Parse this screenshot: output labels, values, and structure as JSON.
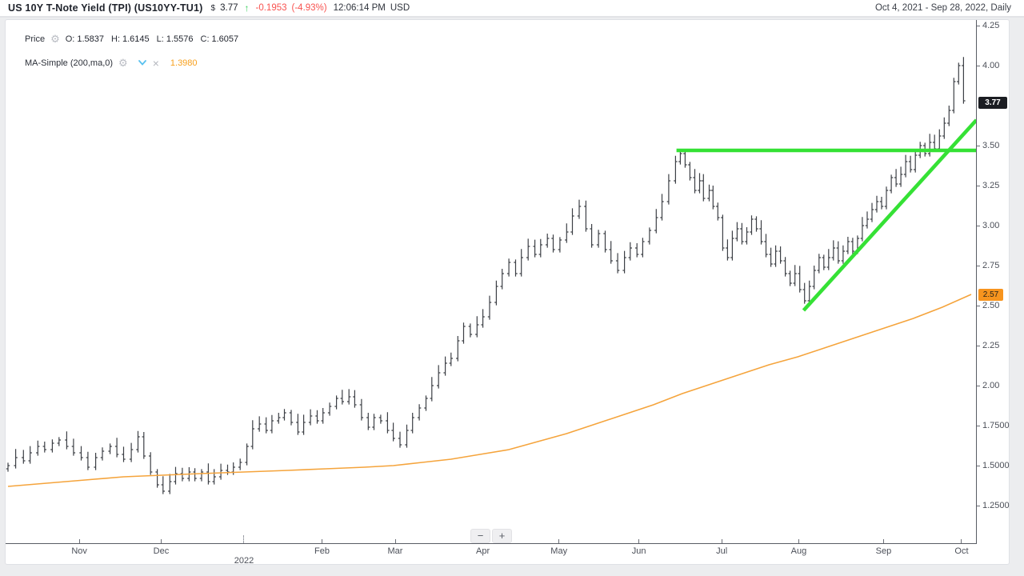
{
  "header": {
    "title": "US 10Y T-Note Yield (TPI) (US10YY-TU1)",
    "currency_symbol": "$",
    "price": "3.77",
    "change": "-0.1953",
    "change_pct": "(-4.93%)",
    "time": "12:06:14 PM",
    "currency": "USD",
    "date_range": "Oct 4, 2021 - Sep 28, 2022",
    "interval": ", Daily"
  },
  "icons": {
    "arrow_up": "↑",
    "gear": "⚙",
    "close": "×"
  },
  "legend": {
    "price_row": {
      "label": "Price",
      "o_label": "O:",
      "o": "1.5837",
      "h_label": "H:",
      "h": "1.6145",
      "l_label": "L:",
      "l": "1.5576",
      "c_label": "C:",
      "c": "1.6057"
    },
    "ma_row": {
      "label": "MA-Simple (200,ma,0)",
      "value": "1.3980"
    }
  },
  "toolbar": {
    "zoom_out": "−",
    "zoom_in": "+"
  },
  "axis_badges": {
    "last_price": "3.77",
    "ma_value": "2.57"
  },
  "colors": {
    "trend_green": "#35e135",
    "ma_orange": "#f5a43c",
    "ma_badge_bg": "#f7941e",
    "price_badge_bg": "#1b1d22",
    "bars": "#3d4046",
    "up_green": "#3bcf5f",
    "down_red": "#f8524f",
    "axis_line": "#595c64"
  },
  "chart_data": {
    "type": "ohlc",
    "title": "US 10Y T-Note Yield (TPI) (US10YY-TU1)",
    "x_range_labels": [
      "Oct 4, 2021",
      "Sep 28, 2022"
    ],
    "interval": "Daily",
    "last_price": 3.77,
    "grid": false,
    "legend_position": "top-left",
    "y_axis_range": [
      1.015,
      4.285
    ],
    "y_ticks": [
      {
        "label": "4.25",
        "value": 4.25
      },
      {
        "label": "4.00",
        "value": 4.0
      },
      {
        "label": "3.50",
        "value": 3.5
      },
      {
        "label": "3.25",
        "value": 3.25
      },
      {
        "label": "3.00",
        "value": 3.0
      },
      {
        "label": "2.75",
        "value": 2.75
      },
      {
        "label": "2.50",
        "value": 2.5
      },
      {
        "label": "2.25",
        "value": 2.25
      },
      {
        "label": "2.00",
        "value": 2.0
      },
      {
        "label": "1.7500",
        "value": 1.75
      },
      {
        "label": "1.5000",
        "value": 1.5
      },
      {
        "label": "1.2500",
        "value": 1.25
      }
    ],
    "x_ticks": [
      {
        "label": "Nov",
        "t": 0.074
      },
      {
        "label": "Dec",
        "t": 0.159
      },
      {
        "label": "2022",
        "t": 0.245,
        "year": true
      },
      {
        "label": "Feb",
        "t": 0.326
      },
      {
        "label": "Mar",
        "t": 0.402
      },
      {
        "label": "Apr",
        "t": 0.493
      },
      {
        "label": "May",
        "t": 0.572
      },
      {
        "label": "Jun",
        "t": 0.655
      },
      {
        "label": "Jul",
        "t": 0.741
      },
      {
        "label": "Aug",
        "t": 0.821
      },
      {
        "label": "Sep",
        "t": 0.909
      },
      {
        "label": "Oct",
        "t": 0.99
      }
    ],
    "close_anchors": [
      [
        0.0,
        1.5
      ],
      [
        0.008,
        1.55
      ],
      [
        0.016,
        1.53
      ],
      [
        0.023,
        1.58
      ],
      [
        0.031,
        1.62
      ],
      [
        0.038,
        1.6
      ],
      [
        0.046,
        1.64
      ],
      [
        0.053,
        1.66
      ],
      [
        0.061,
        1.62
      ],
      [
        0.068,
        1.58
      ],
      [
        0.076,
        1.55
      ],
      [
        0.083,
        1.49
      ],
      [
        0.091,
        1.55
      ],
      [
        0.098,
        1.59
      ],
      [
        0.106,
        1.62
      ],
      [
        0.113,
        1.57
      ],
      [
        0.12,
        1.54
      ],
      [
        0.128,
        1.6
      ],
      [
        0.135,
        1.68
      ],
      [
        0.141,
        1.56
      ],
      [
        0.148,
        1.46
      ],
      [
        0.155,
        1.38
      ],
      [
        0.161,
        1.34
      ],
      [
        0.168,
        1.4
      ],
      [
        0.174,
        1.45
      ],
      [
        0.181,
        1.42
      ],
      [
        0.188,
        1.46
      ],
      [
        0.194,
        1.42
      ],
      [
        0.201,
        1.46
      ],
      [
        0.208,
        1.4
      ],
      [
        0.214,
        1.43
      ],
      [
        0.221,
        1.47
      ],
      [
        0.228,
        1.46
      ],
      [
        0.234,
        1.49
      ],
      [
        0.241,
        1.52
      ],
      [
        0.248,
        1.62
      ],
      [
        0.254,
        1.73
      ],
      [
        0.261,
        1.76
      ],
      [
        0.268,
        1.72
      ],
      [
        0.274,
        1.78
      ],
      [
        0.281,
        1.8
      ],
      [
        0.287,
        1.83
      ],
      [
        0.294,
        1.77
      ],
      [
        0.301,
        1.71
      ],
      [
        0.307,
        1.77
      ],
      [
        0.314,
        1.81
      ],
      [
        0.321,
        1.78
      ],
      [
        0.327,
        1.83
      ],
      [
        0.334,
        1.87
      ],
      [
        0.341,
        1.92
      ],
      [
        0.347,
        1.9
      ],
      [
        0.354,
        1.93
      ],
      [
        0.36,
        1.88
      ],
      [
        0.367,
        1.8
      ],
      [
        0.374,
        1.74
      ],
      [
        0.38,
        1.8
      ],
      [
        0.387,
        1.78
      ],
      [
        0.394,
        1.72
      ],
      [
        0.4,
        1.67
      ],
      [
        0.407,
        1.63
      ],
      [
        0.414,
        1.72
      ],
      [
        0.42,
        1.8
      ],
      [
        0.427,
        1.86
      ],
      [
        0.434,
        1.92
      ],
      [
        0.44,
        2.0
      ],
      [
        0.447,
        2.08
      ],
      [
        0.454,
        2.14
      ],
      [
        0.46,
        2.17
      ],
      [
        0.467,
        2.28
      ],
      [
        0.473,
        2.37
      ],
      [
        0.48,
        2.32
      ],
      [
        0.487,
        2.38
      ],
      [
        0.493,
        2.43
      ],
      [
        0.5,
        2.52
      ],
      [
        0.507,
        2.62
      ],
      [
        0.513,
        2.7
      ],
      [
        0.52,
        2.77
      ],
      [
        0.527,
        2.7
      ],
      [
        0.533,
        2.8
      ],
      [
        0.54,
        2.87
      ],
      [
        0.547,
        2.82
      ],
      [
        0.553,
        2.88
      ],
      [
        0.56,
        2.92
      ],
      [
        0.566,
        2.85
      ],
      [
        0.573,
        2.91
      ],
      [
        0.58,
        2.96
      ],
      [
        0.586,
        3.06
      ],
      [
        0.593,
        3.12
      ],
      [
        0.6,
        2.98
      ],
      [
        0.606,
        2.88
      ],
      [
        0.613,
        2.95
      ],
      [
        0.62,
        2.85
      ],
      [
        0.626,
        2.78
      ],
      [
        0.633,
        2.72
      ],
      [
        0.64,
        2.8
      ],
      [
        0.646,
        2.86
      ],
      [
        0.653,
        2.82
      ],
      [
        0.659,
        2.9
      ],
      [
        0.666,
        2.97
      ],
      [
        0.673,
        3.05
      ],
      [
        0.679,
        3.15
      ],
      [
        0.686,
        3.28
      ],
      [
        0.693,
        3.4
      ],
      [
        0.698,
        3.45
      ],
      [
        0.703,
        3.38
      ],
      [
        0.708,
        3.3
      ],
      [
        0.713,
        3.22
      ],
      [
        0.718,
        3.28
      ],
      [
        0.722,
        3.17
      ],
      [
        0.728,
        3.22
      ],
      [
        0.732,
        3.12
      ],
      [
        0.737,
        3.05
      ],
      [
        0.742,
        2.86
      ],
      [
        0.747,
        2.8
      ],
      [
        0.752,
        2.92
      ],
      [
        0.757,
        2.98
      ],
      [
        0.762,
        2.9
      ],
      [
        0.767,
        2.96
      ],
      [
        0.772,
        3.04
      ],
      [
        0.777,
        2.98
      ],
      [
        0.782,
        2.9
      ],
      [
        0.787,
        2.82
      ],
      [
        0.792,
        2.76
      ],
      [
        0.797,
        2.84
      ],
      [
        0.802,
        2.78
      ],
      [
        0.807,
        2.7
      ],
      [
        0.812,
        2.64
      ],
      [
        0.817,
        2.7
      ],
      [
        0.822,
        2.6
      ],
      [
        0.827,
        2.53
      ],
      [
        0.832,
        2.62
      ],
      [
        0.837,
        2.72
      ],
      [
        0.842,
        2.8
      ],
      [
        0.847,
        2.74
      ],
      [
        0.852,
        2.8
      ],
      [
        0.857,
        2.86
      ],
      [
        0.862,
        2.78
      ],
      [
        0.867,
        2.84
      ],
      [
        0.872,
        2.9
      ],
      [
        0.877,
        2.84
      ],
      [
        0.882,
        2.92
      ],
      [
        0.887,
        3.0
      ],
      [
        0.892,
        3.04
      ],
      [
        0.897,
        3.1
      ],
      [
        0.902,
        3.15
      ],
      [
        0.907,
        3.12
      ],
      [
        0.912,
        3.22
      ],
      [
        0.917,
        3.3
      ],
      [
        0.922,
        3.26
      ],
      [
        0.927,
        3.32
      ],
      [
        0.932,
        3.4
      ],
      [
        0.937,
        3.35
      ],
      [
        0.942,
        3.44
      ],
      [
        0.947,
        3.5
      ],
      [
        0.952,
        3.45
      ],
      [
        0.957,
        3.52
      ],
      [
        0.962,
        3.48
      ],
      [
        0.967,
        3.56
      ],
      [
        0.972,
        3.64
      ],
      [
        0.977,
        3.72
      ],
      [
        0.982,
        3.9
      ],
      [
        0.987,
        4.0
      ],
      [
        0.992,
        3.78
      ]
    ],
    "ma_line": {
      "name": "MA-Simple (200,ma,0)",
      "last_value": 2.57,
      "points": [
        [
          0.0,
          1.37
        ],
        [
          0.04,
          1.39
        ],
        [
          0.08,
          1.41
        ],
        [
          0.12,
          1.43
        ],
        [
          0.16,
          1.44
        ],
        [
          0.2,
          1.45
        ],
        [
          0.245,
          1.46
        ],
        [
          0.29,
          1.47
        ],
        [
          0.33,
          1.48
        ],
        [
          0.37,
          1.49
        ],
        [
          0.4,
          1.5
        ],
        [
          0.43,
          1.52
        ],
        [
          0.46,
          1.54
        ],
        [
          0.49,
          1.57
        ],
        [
          0.52,
          1.6
        ],
        [
          0.55,
          1.65
        ],
        [
          0.58,
          1.7
        ],
        [
          0.61,
          1.76
        ],
        [
          0.64,
          1.82
        ],
        [
          0.67,
          1.88
        ],
        [
          0.7,
          1.95
        ],
        [
          0.73,
          2.01
        ],
        [
          0.76,
          2.07
        ],
        [
          0.79,
          2.13
        ],
        [
          0.82,
          2.18
        ],
        [
          0.85,
          2.24
        ],
        [
          0.88,
          2.3
        ],
        [
          0.91,
          2.36
        ],
        [
          0.94,
          2.42
        ],
        [
          0.97,
          2.49
        ],
        [
          1.0,
          2.57
        ]
      ]
    },
    "trend_lines": [
      {
        "name": "horizontal-resistance",
        "from": [
          0.694,
          3.47
        ],
        "to": [
          1.0,
          3.47
        ]
      },
      {
        "name": "ascending-support",
        "from": [
          0.826,
          2.47
        ],
        "to": [
          1.0,
          3.66
        ]
      }
    ]
  }
}
